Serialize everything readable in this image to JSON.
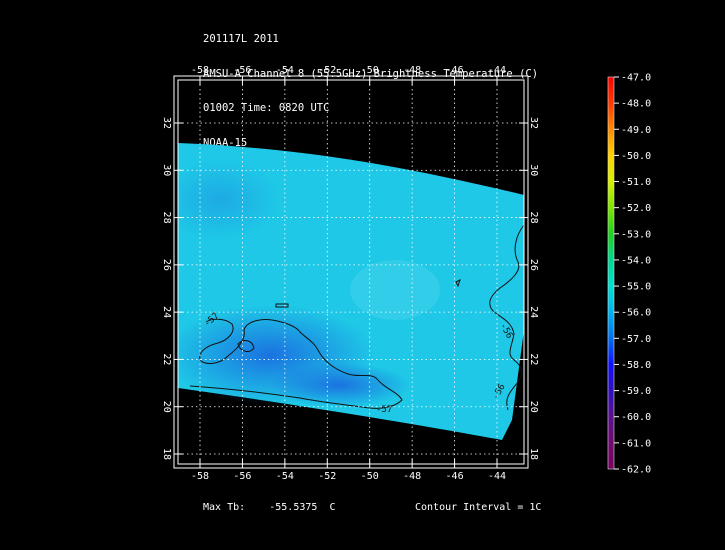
{
  "header": {
    "lines": [
      "201117L 2011",
      "AMSU-A Channel 8 (55.5GHz) Brightness Temperature (C)",
      "01002 Time: 0820 UTC",
      "NOAA-15"
    ]
  },
  "map": {
    "lon_ticks": [
      "-58",
      "-56",
      "-54",
      "-52",
      "-50",
      "-48",
      "-46",
      "-44"
    ],
    "lat_ticks": [
      "18",
      "20",
      "22",
      "24",
      "26",
      "28",
      "30",
      "32"
    ],
    "contour_labels": [
      "-57",
      "-57",
      "-56",
      "-56"
    ],
    "swath_color": "#1ec8e6",
    "cold_color": "#1e78e0",
    "grid_color": "#ffffff"
  },
  "colorbar": {
    "labels": [
      "-47.0",
      "-48.0",
      "-49.0",
      "-50.0",
      "-51.0",
      "-52.0",
      "-53.0",
      "-54.0",
      "-55.0",
      "-56.0",
      "-57.0",
      "-58.0",
      "-59.0",
      "-60.0",
      "-61.0",
      "-62.0"
    ],
    "colors": [
      "#ff0000",
      "#ff3a00",
      "#ff8c00",
      "#ffd200",
      "#d8f000",
      "#7de600",
      "#20d020",
      "#00d890",
      "#00e0d0",
      "#00b4f0",
      "#0070f0",
      "#1010ff",
      "#3010c0",
      "#5a1090",
      "#700a70",
      "#7a0060"
    ]
  },
  "footer": {
    "max_tb_label": "Max Tb:",
    "max_tb_value": "-55.5375",
    "max_tb_unit": "C",
    "contour_interval": "Contour Interval = 1C"
  }
}
